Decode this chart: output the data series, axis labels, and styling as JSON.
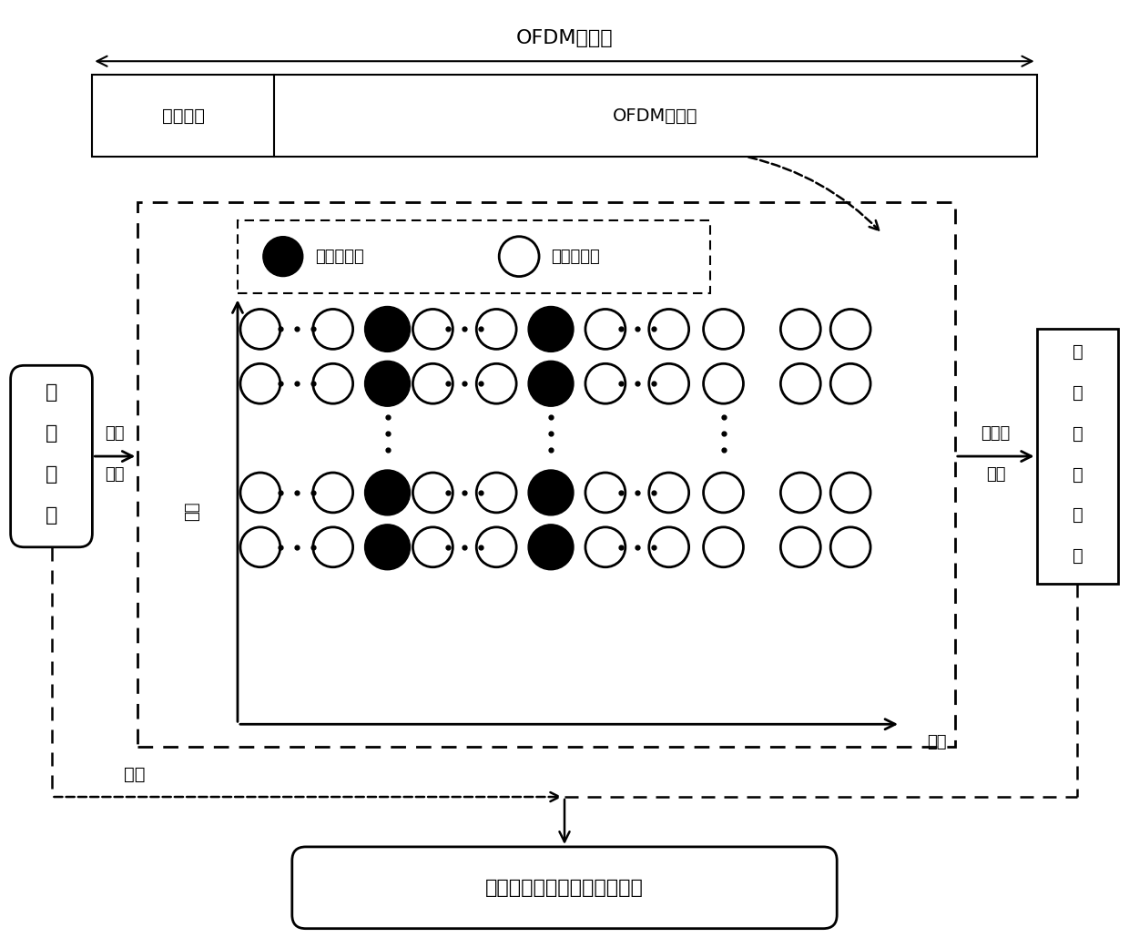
{
  "title": "OFDM信号帧",
  "top_bar_left_label": "保护间隔",
  "top_bar_right_label": "OFDM数据块",
  "legend_filled_label": "虚拟子载波",
  "legend_open_label": "数据子载波",
  "time_axis_label": "一帧",
  "freq_axis_label": "频域",
  "left_box_chars": [
    "先",
    "验",
    "信",
    "息"
  ],
  "left_arrow_line1": "时域",
  "left_arrow_line2": "获得",
  "right_box_chars": [
    "压",
    "缩",
    "感",
    "知",
    "参",
    "数"
  ],
  "right_arrow_line1": "时频域",
  "right_arrow_line2": "获得",
  "bottom_box_label": "基于压缩感知的限幅噪声估计",
  "aux_label": "辅助",
  "bg_color": "#ffffff",
  "text_color": "#000000"
}
